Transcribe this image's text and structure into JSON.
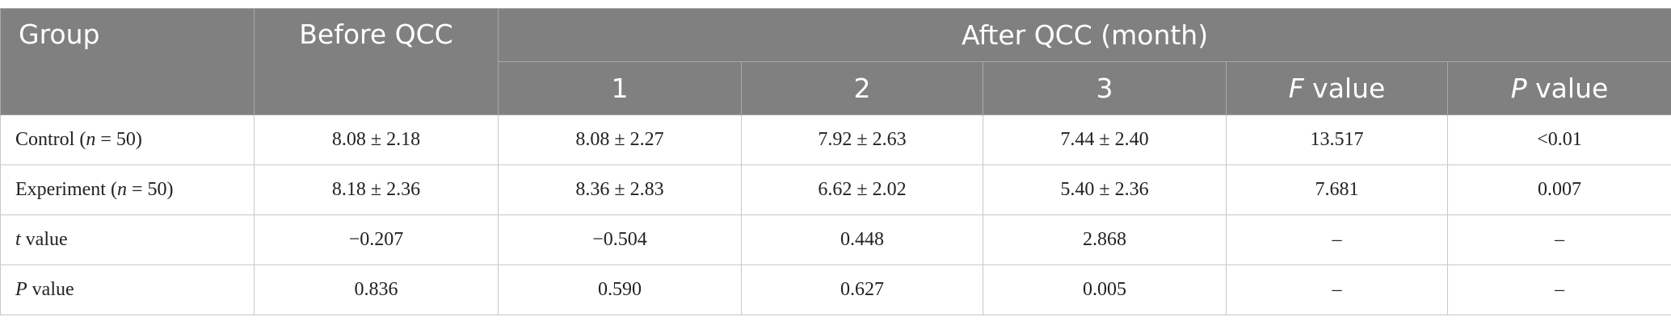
{
  "table": {
    "header": {
      "group": "Group",
      "before": "Before QCC",
      "after": "After QCC (month)",
      "sub": [
        "1",
        "2",
        "3",
        {
          "italic": "F",
          "after": " value"
        },
        {
          "italic": "P",
          "after": " value"
        }
      ]
    },
    "rows": [
      {
        "label": {
          "before": "Control (",
          "italic": "n",
          "after": " = 50)"
        },
        "cells": [
          "8.08 ± 2.18",
          "8.08 ± 2.27",
          "7.92 ± 2.63",
          "7.44 ± 2.40",
          "13.517",
          "<0.01"
        ]
      },
      {
        "label": {
          "before": "Experiment (",
          "italic": "n",
          "after": " = 50)"
        },
        "cells": [
          "8.18 ± 2.36",
          "8.36 ± 2.83",
          "6.62 ± 2.02",
          "5.40 ± 2.36",
          "7.681",
          "0.007"
        ]
      },
      {
        "label": {
          "italic": "t",
          "after": " value"
        },
        "cells": [
          "−0.207",
          "−0.504",
          "0.448",
          "2.868",
          "–",
          "–"
        ]
      },
      {
        "label": {
          "italic": "P",
          "after": " value"
        },
        "cells": [
          "0.836",
          "0.590",
          "0.627",
          "0.005",
          "–",
          "–"
        ]
      }
    ]
  }
}
